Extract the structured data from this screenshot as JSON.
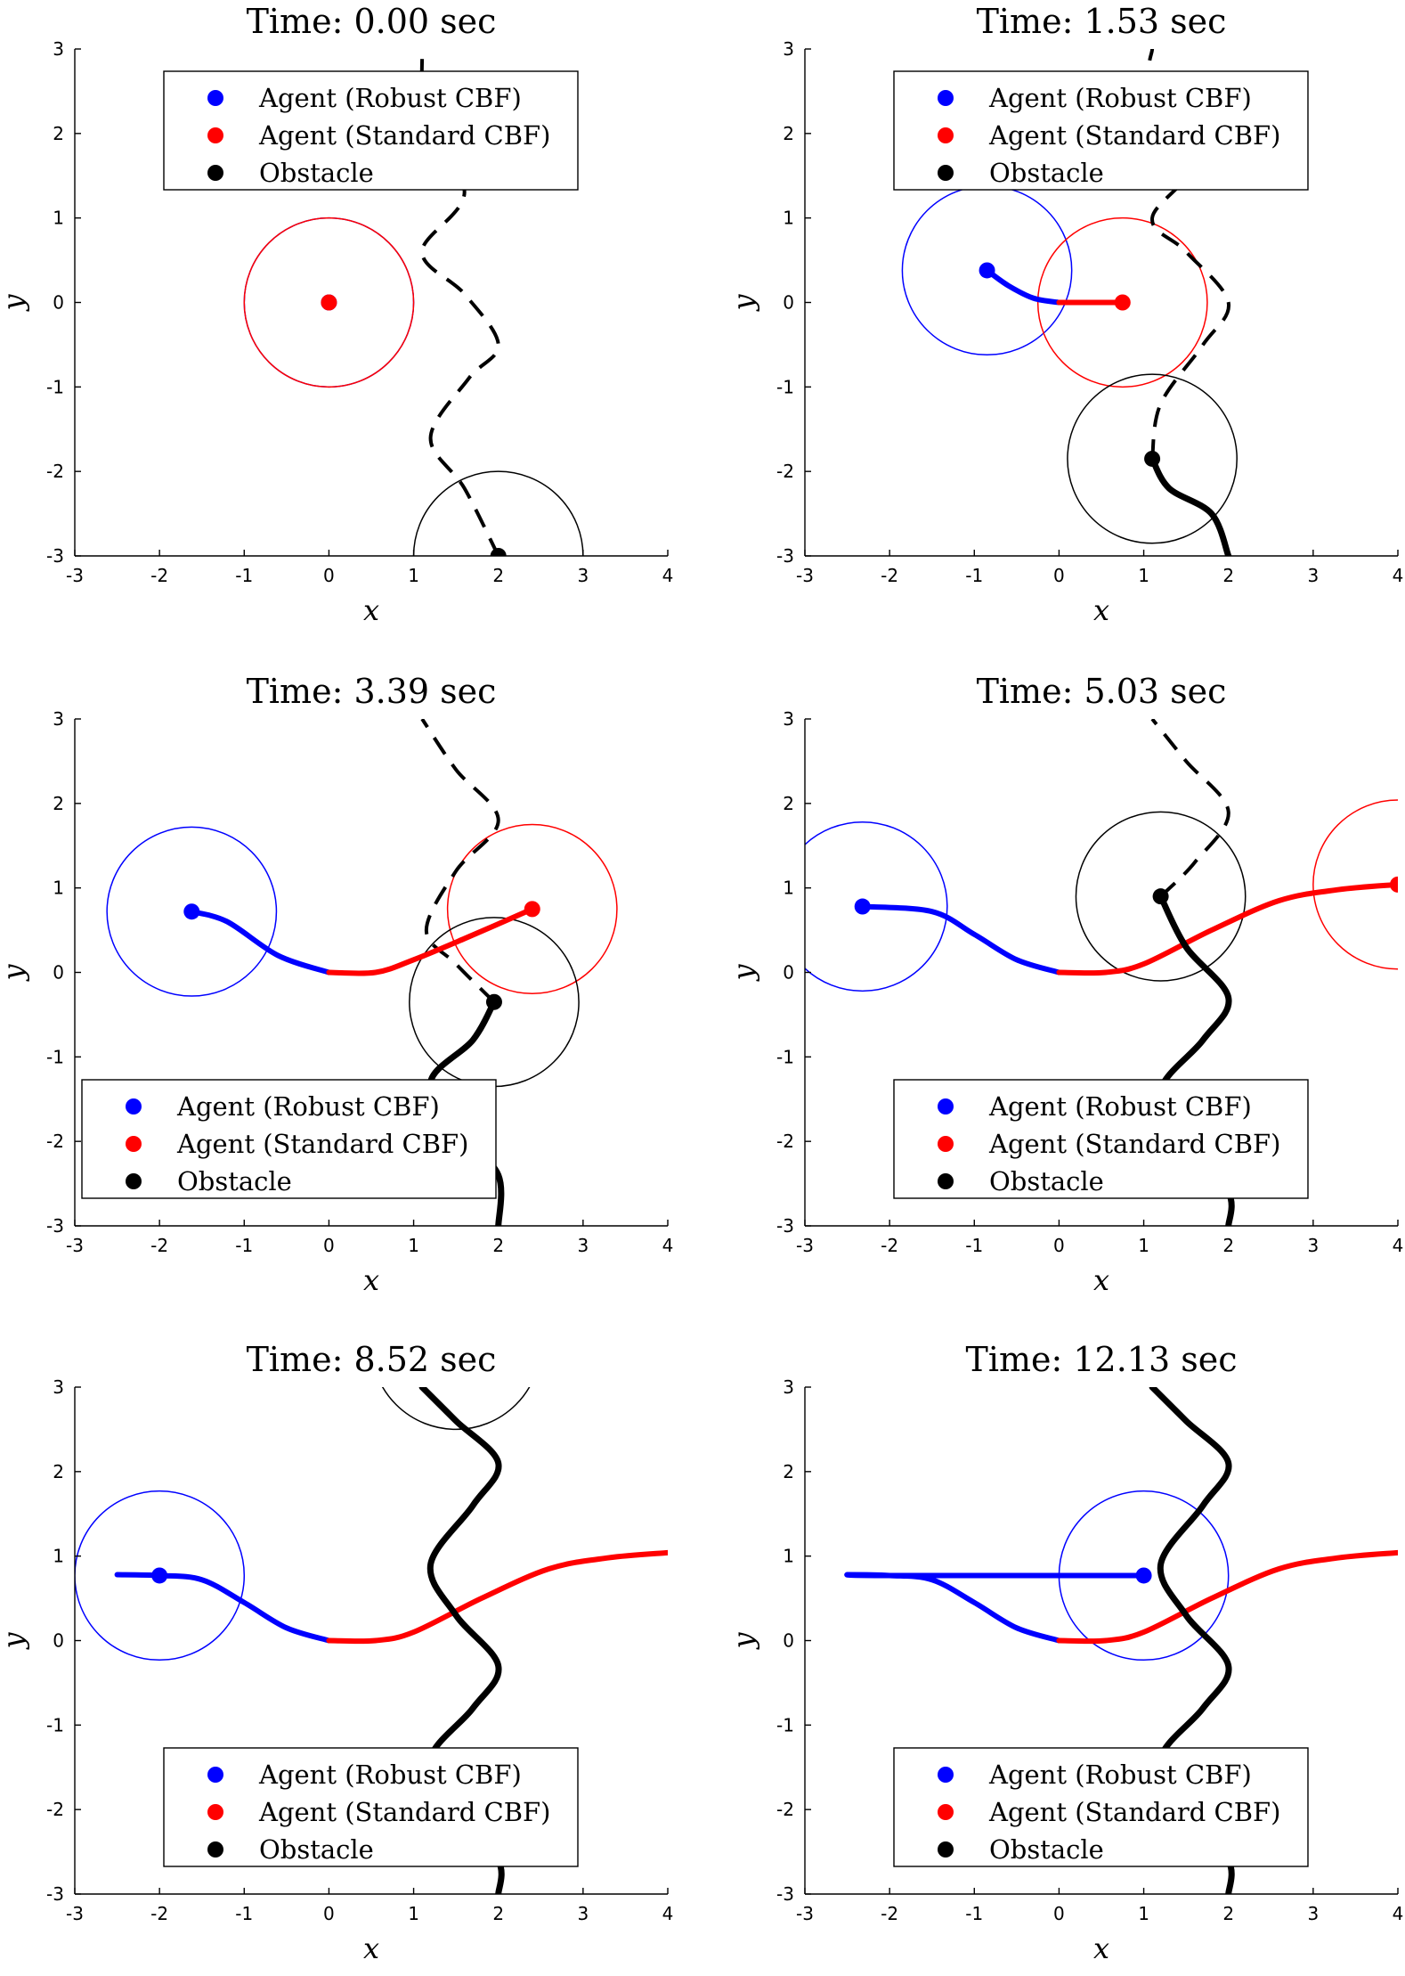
{
  "chart_data": [
    {
      "type": "line",
      "title": "Time: 0.00 sec",
      "xlabel": "x",
      "ylabel": "y",
      "xlim": [
        -3,
        4
      ],
      "ylim": [
        -3,
        3
      ],
      "xticks": [
        -3,
        -2,
        -1,
        0,
        1,
        2,
        3,
        4
      ],
      "yticks": [
        -3,
        -2,
        -1,
        0,
        1,
        2,
        3
      ],
      "legend": {
        "position": "top",
        "entries": [
          {
            "label": "Agent (Robust CBF)",
            "color": "#0000ff"
          },
          {
            "label": "Agent (Standard CBF)",
            "color": "#ff0000"
          },
          {
            "label": "Obstacle",
            "color": "#000000"
          }
        ]
      },
      "series": [
        {
          "role": "obstacle-future",
          "color": "#000000",
          "width": 4,
          "dash": true,
          "points": [
            [
              2,
              -3
            ],
            [
              1.6,
              -2.2
            ],
            [
              1.2,
              -1.6
            ],
            [
              1.65,
              -0.9
            ],
            [
              2.0,
              -0.5
            ],
            [
              1.6,
              0.1
            ],
            [
              1.1,
              0.6
            ],
            [
              1.6,
              1.3
            ],
            [
              1.15,
              2.2
            ],
            [
              1.1,
              3
            ]
          ]
        },
        {
          "role": "robust-agent",
          "color": "#0000ff",
          "width": 6,
          "points": [
            [
              0,
              0
            ]
          ],
          "marker": [
            0,
            0
          ],
          "circle": {
            "center": [
              0,
              0
            ],
            "r": 1
          }
        },
        {
          "role": "standard-agent",
          "color": "#ff0000",
          "width": 6,
          "points": [
            [
              0,
              0
            ]
          ],
          "marker": [
            0,
            0
          ],
          "circle": {
            "center": [
              0,
              0
            ],
            "r": 1
          }
        },
        {
          "role": "obstacle",
          "color": "#000000",
          "width": 7,
          "points": [
            [
              2,
              -3
            ]
          ],
          "marker": [
            2,
            -3
          ],
          "circle": {
            "center": [
              2,
              -3
            ],
            "r": 1
          }
        }
      ]
    },
    {
      "type": "line",
      "title": "Time: 1.53 sec",
      "xlabel": "x",
      "ylabel": "y",
      "xlim": [
        -3,
        4
      ],
      "ylim": [
        -3,
        3
      ],
      "xticks": [
        -3,
        -2,
        -1,
        0,
        1,
        2,
        3,
        4
      ],
      "yticks": [
        -3,
        -2,
        -1,
        0,
        1,
        2,
        3
      ],
      "legend": {
        "position": "top",
        "entries": [
          {
            "label": "Agent (Robust CBF)",
            "color": "#0000ff"
          },
          {
            "label": "Agent (Standard CBF)",
            "color": "#ff0000"
          },
          {
            "label": "Obstacle",
            "color": "#000000"
          }
        ]
      },
      "series": [
        {
          "role": "obstacle-future",
          "color": "#000000",
          "width": 4,
          "dash": true,
          "points": [
            [
              1.1,
              -1.85
            ],
            [
              1.2,
              -1.2
            ],
            [
              1.7,
              -0.5
            ],
            [
              2.0,
              0.0
            ],
            [
              1.5,
              0.6
            ],
            [
              1.1,
              1.0
            ],
            [
              1.6,
              1.7
            ],
            [
              1.1,
              2.6
            ],
            [
              1.1,
              3
            ]
          ]
        },
        {
          "role": "robust-agent",
          "color": "#0000ff",
          "width": 6,
          "points": [
            [
              0,
              0
            ],
            [
              -0.3,
              0.05
            ],
            [
              -0.6,
              0.2
            ],
            [
              -0.85,
              0.38
            ]
          ],
          "marker": [
            -0.85,
            0.38
          ],
          "circle": {
            "center": [
              -0.85,
              0.38
            ],
            "r": 1
          }
        },
        {
          "role": "standard-agent",
          "color": "#ff0000",
          "width": 6,
          "points": [
            [
              0,
              0
            ],
            [
              0.75,
              0
            ]
          ],
          "marker": [
            0.75,
            0
          ],
          "circle": {
            "center": [
              0.75,
              0
            ],
            "r": 1
          }
        },
        {
          "role": "obstacle",
          "color": "#000000",
          "width": 7,
          "points": [
            [
              2,
              -3
            ],
            [
              1.8,
              -2.5
            ],
            [
              1.3,
              -2.2
            ],
            [
              1.1,
              -1.85
            ]
          ],
          "marker": [
            1.1,
            -1.85
          ],
          "circle": {
            "center": [
              1.1,
              -1.85
            ],
            "r": 1
          }
        }
      ]
    },
    {
      "type": "line",
      "title": "Time: 3.39 sec",
      "xlabel": "x",
      "ylabel": "y",
      "xlim": [
        -3,
        4
      ],
      "ylim": [
        -3,
        3
      ],
      "xticks": [
        -3,
        -2,
        -1,
        0,
        1,
        2,
        3,
        4
      ],
      "yticks": [
        -3,
        -2,
        -1,
        0,
        1,
        2,
        3
      ],
      "legend": {
        "position": "bottom-left",
        "entries": [
          {
            "label": "Agent (Robust CBF)",
            "color": "#0000ff"
          },
          {
            "label": "Agent (Standard CBF)",
            "color": "#ff0000"
          },
          {
            "label": "Obstacle",
            "color": "#000000"
          }
        ]
      },
      "series": [
        {
          "role": "obstacle-future",
          "color": "#000000",
          "width": 4,
          "dash": true,
          "points": [
            [
              1.95,
              -0.35
            ],
            [
              1.5,
              0.1
            ],
            [
              1.15,
              0.5
            ],
            [
              1.5,
              1.2
            ],
            [
              2.0,
              1.8
            ],
            [
              1.5,
              2.4
            ],
            [
              1.1,
              3
            ]
          ]
        },
        {
          "role": "robust-agent",
          "color": "#0000ff",
          "width": 6,
          "points": [
            [
              0,
              0
            ],
            [
              -0.6,
              0.2
            ],
            [
              -1.2,
              0.6
            ],
            [
              -1.62,
              0.72
            ]
          ],
          "marker": [
            -1.62,
            0.72
          ],
          "circle": {
            "center": [
              -1.62,
              0.72
            ],
            "r": 1
          }
        },
        {
          "role": "standard-agent",
          "color": "#ff0000",
          "width": 6,
          "points": [
            [
              0,
              0
            ],
            [
              0.55,
              0
            ],
            [
              1.0,
              0.15
            ],
            [
              1.6,
              0.4
            ],
            [
              2.4,
              0.75
            ]
          ],
          "marker": [
            2.4,
            0.75
          ],
          "circle": {
            "center": [
              2.4,
              0.75
            ],
            "r": 1
          }
        },
        {
          "role": "obstacle",
          "color": "#000000",
          "width": 7,
          "points": [
            [
              2,
              -3
            ],
            [
              2.0,
              -2.4
            ],
            [
              1.55,
              -1.9
            ],
            [
              1.2,
              -1.3
            ],
            [
              1.7,
              -0.8
            ],
            [
              1.95,
              -0.35
            ]
          ],
          "marker": [
            1.95,
            -0.35
          ],
          "circle": {
            "center": [
              1.95,
              -0.35
            ],
            "r": 1
          }
        }
      ]
    },
    {
      "type": "line",
      "title": "Time: 5.03 sec",
      "xlabel": "x",
      "ylabel": "y",
      "xlim": [
        -3,
        4
      ],
      "ylim": [
        -3,
        3
      ],
      "xticks": [
        -3,
        -2,
        -1,
        0,
        1,
        2,
        3,
        4
      ],
      "yticks": [
        -3,
        -2,
        -1,
        0,
        1,
        2,
        3
      ],
      "legend": {
        "position": "bottom",
        "entries": [
          {
            "label": "Agent (Robust CBF)",
            "color": "#0000ff"
          },
          {
            "label": "Agent (Standard CBF)",
            "color": "#ff0000"
          },
          {
            "label": "Obstacle",
            "color": "#000000"
          }
        ]
      },
      "series": [
        {
          "role": "obstacle-future",
          "color": "#000000",
          "width": 4,
          "dash": true,
          "points": [
            [
              1.2,
              0.9
            ],
            [
              1.6,
              1.3
            ],
            [
              2.0,
              1.9
            ],
            [
              1.5,
              2.5
            ],
            [
              1.1,
              3
            ]
          ]
        },
        {
          "role": "robust-agent",
          "color": "#0000ff",
          "width": 6,
          "points": [
            [
              0,
              0
            ],
            [
              -0.5,
              0.15
            ],
            [
              -1.0,
              0.45
            ],
            [
              -1.5,
              0.72
            ],
            [
              -2.32,
              0.78
            ]
          ],
          "marker": [
            -2.32,
            0.78
          ],
          "circle": {
            "center": [
              -2.32,
              0.78
            ],
            "r": 1
          }
        },
        {
          "role": "standard-agent",
          "color": "#ff0000",
          "width": 6,
          "points": [
            [
              0,
              0
            ],
            [
              0.55,
              0
            ],
            [
              1.0,
              0.1
            ],
            [
              1.8,
              0.5
            ],
            [
              2.6,
              0.85
            ],
            [
              3.3,
              0.98
            ],
            [
              4,
              1.04
            ]
          ],
          "marker": [
            4.0,
            1.04
          ],
          "circle": {
            "center": [
              4.0,
              1.04
            ],
            "r": 1
          }
        },
        {
          "role": "obstacle",
          "color": "#000000",
          "width": 7,
          "points": [
            [
              2,
              -3
            ],
            [
              2,
              -2.6
            ],
            [
              1.5,
              -2.0
            ],
            [
              1.2,
              -1.4
            ],
            [
              1.7,
              -0.8
            ],
            [
              2.0,
              -0.3
            ],
            [
              1.5,
              0.3
            ],
            [
              1.2,
              0.9
            ]
          ],
          "marker": [
            1.2,
            0.9
          ],
          "circle": {
            "center": [
              1.2,
              0.9
            ],
            "r": 1
          }
        }
      ]
    },
    {
      "type": "line",
      "title": "Time: 8.52 sec",
      "xlabel": "x",
      "ylabel": "y",
      "xlim": [
        -3,
        4
      ],
      "ylim": [
        -3,
        3
      ],
      "xticks": [
        -3,
        -2,
        -1,
        0,
        1,
        2,
        3,
        4
      ],
      "yticks": [
        -3,
        -2,
        -1,
        0,
        1,
        2,
        3
      ],
      "legend": {
        "position": "bottom",
        "entries": [
          {
            "label": "Agent (Robust CBF)",
            "color": "#0000ff"
          },
          {
            "label": "Agent (Standard CBF)",
            "color": "#ff0000"
          },
          {
            "label": "Obstacle",
            "color": "#000000"
          }
        ]
      },
      "series": [
        {
          "role": "robust-agent",
          "color": "#0000ff",
          "width": 6,
          "points": [
            [
              0,
              0
            ],
            [
              -0.5,
              0.15
            ],
            [
              -1.0,
              0.45
            ],
            [
              -1.5,
              0.72
            ],
            [
              -2.0,
              0.77
            ],
            [
              -2.5,
              0.78
            ]
          ],
          "marker": [
            -2.0,
            0.77
          ],
          "circle": {
            "center": [
              -2.0,
              0.77
            ],
            "r": 1
          }
        },
        {
          "role": "standard-agent",
          "color": "#ff0000",
          "width": 6,
          "points": [
            [
              0,
              0
            ],
            [
              0.55,
              0
            ],
            [
              1.0,
              0.1
            ],
            [
              1.8,
              0.5
            ],
            [
              2.6,
              0.85
            ],
            [
              3.3,
              0.98
            ],
            [
              4,
              1.04
            ]
          ]
        },
        {
          "role": "obstacle",
          "color": "#000000",
          "width": 7,
          "points": [
            [
              2,
              -3
            ],
            [
              2,
              -2.6
            ],
            [
              1.5,
              -2.0
            ],
            [
              1.2,
              -1.4
            ],
            [
              1.7,
              -0.8
            ],
            [
              2.0,
              -0.3
            ],
            [
              1.5,
              0.3
            ],
            [
              1.2,
              0.9
            ],
            [
              1.7,
              1.6
            ],
            [
              2.0,
              2.1
            ],
            [
              1.5,
              2.6
            ],
            [
              1.1,
              3
            ]
          ],
          "marker": [
            1.5,
            3.5
          ],
          "circle": {
            "center": [
              1.5,
              3.5
            ],
            "r": 1
          }
        }
      ]
    },
    {
      "type": "line",
      "title": "Time: 12.13 sec",
      "xlabel": "x",
      "ylabel": "y",
      "xlim": [
        -3,
        4
      ],
      "ylim": [
        -3,
        3
      ],
      "xticks": [
        -3,
        -2,
        -1,
        0,
        1,
        2,
        3,
        4
      ],
      "yticks": [
        -3,
        -2,
        -1,
        0,
        1,
        2,
        3
      ],
      "legend": {
        "position": "bottom",
        "entries": [
          {
            "label": "Agent (Robust CBF)",
            "color": "#0000ff"
          },
          {
            "label": "Agent (Standard CBF)",
            "color": "#ff0000"
          },
          {
            "label": "Obstacle",
            "color": "#000000"
          }
        ]
      },
      "series": [
        {
          "role": "robust-agent",
          "color": "#0000ff",
          "width": 6,
          "points": [
            [
              0,
              0
            ],
            [
              -0.5,
              0.15
            ],
            [
              -1.0,
              0.45
            ],
            [
              -1.5,
              0.72
            ],
            [
              -2.0,
              0.77
            ],
            [
              -2.5,
              0.78
            ],
            [
              -2.0,
              0.77
            ],
            [
              1.0,
              0.77
            ]
          ],
          "marker": [
            1.0,
            0.77
          ],
          "circle": {
            "center": [
              1.0,
              0.77
            ],
            "r": 1
          }
        },
        {
          "role": "standard-agent",
          "color": "#ff0000",
          "width": 6,
          "points": [
            [
              0,
              0
            ],
            [
              0.55,
              0
            ],
            [
              1.0,
              0.1
            ],
            [
              1.8,
              0.5
            ],
            [
              2.6,
              0.85
            ],
            [
              3.3,
              0.98
            ],
            [
              4,
              1.04
            ]
          ]
        },
        {
          "role": "obstacle",
          "color": "#000000",
          "width": 7,
          "points": [
            [
              2,
              -3
            ],
            [
              2,
              -2.6
            ],
            [
              1.5,
              -2.0
            ],
            [
              1.2,
              -1.4
            ],
            [
              1.7,
              -0.8
            ],
            [
              2.0,
              -0.3
            ],
            [
              1.5,
              0.3
            ],
            [
              1.2,
              0.9
            ],
            [
              1.7,
              1.6
            ],
            [
              2.0,
              2.1
            ],
            [
              1.5,
              2.6
            ],
            [
              1.1,
              3
            ]
          ]
        }
      ]
    }
  ]
}
